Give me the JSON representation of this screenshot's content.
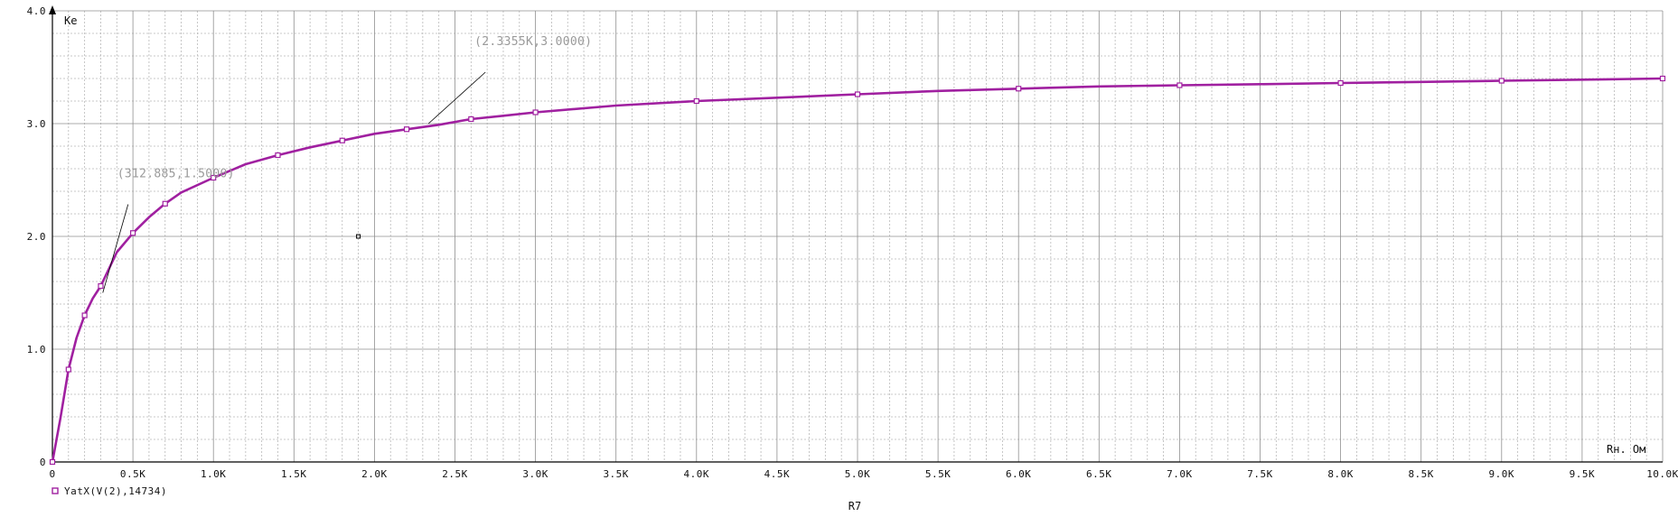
{
  "chart_data": {
    "type": "line",
    "title": "",
    "xlabel": "Rн. Ом",
    "ylabel": "Ke",
    "bottom_label": "R7",
    "xlim": [
      0,
      10000
    ],
    "ylim": [
      0,
      4.0
    ],
    "grid": true,
    "x_ticks": [
      0,
      500,
      1000,
      1500,
      2000,
      2500,
      3000,
      3500,
      4000,
      4500,
      5000,
      5500,
      6000,
      6500,
      7000,
      7500,
      8000,
      8500,
      9000,
      9500,
      10000
    ],
    "x_tick_labels": [
      "0",
      "0.5K",
      "1.0K",
      "1.5K",
      "2.0K",
      "2.5K",
      "3.0K",
      "3.5K",
      "4.0K",
      "4.5K",
      "5.0K",
      "5.5K",
      "6.0K",
      "6.5K",
      "7.0K",
      "7.5K",
      "8.0K",
      "8.5K",
      "9.0K",
      "9.5K",
      "10.0K"
    ],
    "y_ticks": [
      0,
      1.0,
      2.0,
      3.0,
      4.0
    ],
    "y_tick_labels": [
      "0",
      "1.0",
      "2.0",
      "3.0",
      "4.0"
    ],
    "legend": {
      "placement": "bottom-left",
      "entries": [
        "YatX(V(2),14734)"
      ]
    },
    "series": [
      {
        "name": "YatX(V(2),14734)",
        "color": "#a020a0",
        "marker": "square",
        "x": [
          0,
          50,
          100,
          150,
          200,
          250,
          300,
          400,
          500,
          600,
          700,
          800,
          1000,
          1200,
          1400,
          1600,
          1800,
          2000,
          2200,
          2400,
          2600,
          2800,
          3000,
          3500,
          4000,
          4500,
          5000,
          5500,
          6000,
          6500,
          7000,
          7500,
          8000,
          8500,
          9000,
          9500,
          10000
        ],
        "y": [
          0,
          0.39,
          0.82,
          1.1,
          1.3,
          1.45,
          1.56,
          1.86,
          2.03,
          2.17,
          2.29,
          2.39,
          2.52,
          2.64,
          2.72,
          2.79,
          2.85,
          2.91,
          2.95,
          2.99,
          3.04,
          3.07,
          3.1,
          3.16,
          3.2,
          3.23,
          3.26,
          3.29,
          3.31,
          3.33,
          3.34,
          3.35,
          3.36,
          3.37,
          3.38,
          3.39,
          3.4
        ]
      }
    ],
    "annotations": [
      {
        "text": "(312.885,1.5000)",
        "x": 312.885,
        "y": 1.5
      },
      {
        "text": "(2.3355K,3.0000)",
        "x": 2335.5,
        "y": 3.0
      }
    ],
    "colors": {
      "grid_major": "#8f8f8f",
      "grid_minor": "#b8b8b8",
      "axis": "#000000"
    }
  }
}
